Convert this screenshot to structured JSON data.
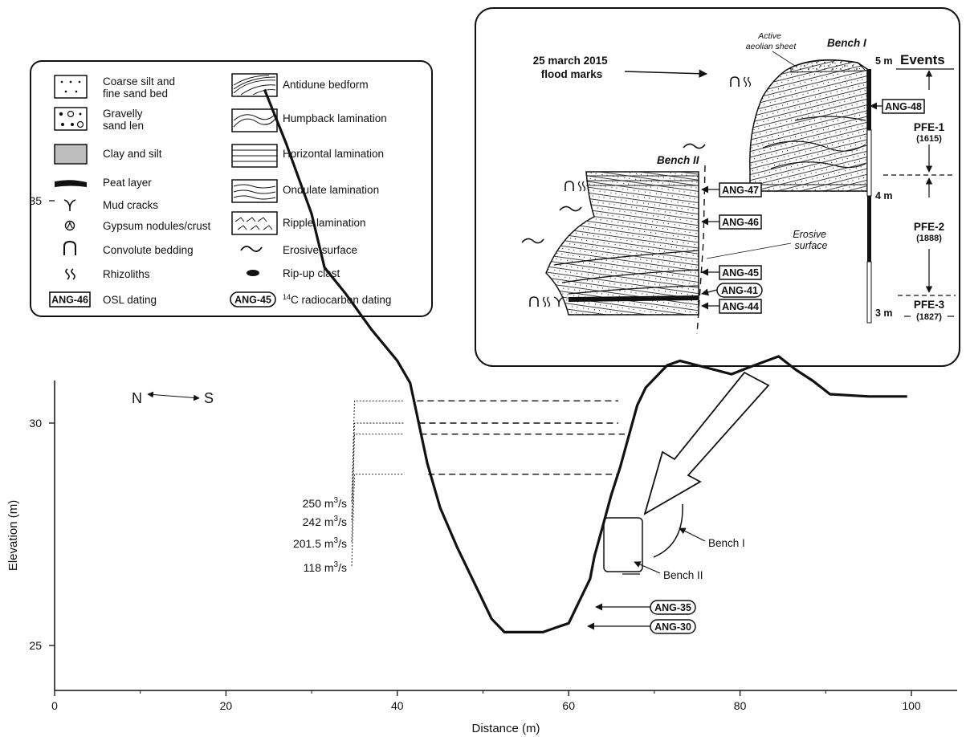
{
  "legend": {
    "left": [
      {
        "label_lines": [
          "Coarse silt and",
          "fine sand bed"
        ]
      },
      {
        "label_lines": [
          "Gravelly",
          "sand len"
        ]
      },
      {
        "label_lines": [
          "Clay and silt"
        ]
      },
      {
        "label_lines": [
          "Peat layer"
        ]
      },
      {
        "label_lines": [
          "Mud cracks"
        ]
      },
      {
        "label_lines": [
          "Gypsum nodules/crust"
        ]
      },
      {
        "label_lines": [
          "Convolute bedding"
        ]
      },
      {
        "label_lines": [
          "Rhizoliths"
        ]
      },
      {
        "label_lines": [
          "OSL dating"
        ],
        "symbol_text": "ANG-46"
      }
    ],
    "right": [
      {
        "label_lines": [
          "Antidune bedform"
        ]
      },
      {
        "label_lines": [
          "Humpback lamination"
        ]
      },
      {
        "label_lines": [
          "Horizontal lamination"
        ]
      },
      {
        "label_lines": [
          "Ondulate lamination"
        ]
      },
      {
        "label_lines": [
          "Ripple lamination"
        ]
      },
      {
        "label_lines": [
          "Erosive surface"
        ]
      },
      {
        "label_lines": [
          "Rip-up clast"
        ]
      },
      {
        "label_lines": [
          "radiocarbon dating"
        ],
        "superscript": "14",
        "prefix": "C",
        "symbol_text": "ANG-45"
      }
    ]
  },
  "inset": {
    "flood_label_lines": [
      "25 march 2015",
      "flood marks"
    ],
    "aeolian_label_lines": [
      "Active",
      "aeolian sheet"
    ],
    "bench1": "Bench I",
    "bench2": "Bench II",
    "erosive_lines": [
      "Erosive",
      "surface"
    ],
    "osl_samples": [
      "ANG-48",
      "ANG-47",
      "ANG-46",
      "ANG-45",
      "ANG-44"
    ],
    "c14_samples": [
      "ANG-41"
    ],
    "scale_labels": [
      "5 m",
      "4 m",
      "3 m"
    ],
    "events_title": "Events",
    "events": [
      {
        "name": "PFE-1",
        "year": "(1615)"
      },
      {
        "name": "PFE-2",
        "year": "(1888)"
      },
      {
        "name": "PFE-3",
        "year": "(1827)"
      }
    ]
  },
  "profile": {
    "xlabel": "Distance (m)",
    "ylabel": "Elevation (m)",
    "xticks": [
      0,
      20,
      40,
      60,
      80,
      100
    ],
    "yticks": [
      25,
      30,
      35
    ],
    "orientation": {
      "left": "N",
      "right": "S"
    },
    "discharges": [
      {
        "value": "250 m",
        "unit_sup": "3",
        "unit_tail": "/s",
        "elevation": 30.5
      },
      {
        "value": "242 m",
        "unit_sup": "3",
        "unit_tail": "/s",
        "elevation": 30.0
      },
      {
        "value": "201.5 m",
        "unit_sup": "3",
        "unit_tail": "/s",
        "elevation": 29.75
      },
      {
        "value": "118 m",
        "unit_sup": "3",
        "unit_tail": "/s",
        "elevation": 28.85
      }
    ],
    "bench_labels": [
      "Bench I",
      "Bench II"
    ],
    "c14_samples": [
      "ANG-35",
      "ANG-30"
    ],
    "terrain": [
      [
        24.5,
        37.5
      ],
      [
        27,
        36.3
      ],
      [
        30,
        34.7
      ],
      [
        31.5,
        33.5
      ],
      [
        34,
        32.9
      ],
      [
        37,
        32.1
      ],
      [
        40,
        31.4
      ],
      [
        41.5,
        30.9
      ],
      [
        42.5,
        30.0
      ],
      [
        43.5,
        29.1
      ],
      [
        45,
        28.1
      ],
      [
        47,
        27.2
      ],
      [
        49.5,
        26.2
      ],
      [
        51,
        25.6
      ],
      [
        52.5,
        25.3
      ],
      [
        57,
        25.3
      ],
      [
        58.5,
        25.4
      ],
      [
        60,
        25.5
      ],
      [
        61,
        25.9
      ],
      [
        62.5,
        26.5
      ],
      [
        63,
        27.0
      ],
      [
        64,
        27.7
      ],
      [
        65,
        28.4
      ],
      [
        66,
        29.0
      ],
      [
        67,
        29.7
      ],
      [
        68,
        30.4
      ],
      [
        69,
        30.8
      ],
      [
        71.5,
        31.3
      ],
      [
        73,
        31.4
      ],
      [
        75,
        31.3
      ],
      [
        77,
        31.2
      ],
      [
        79,
        31.1
      ],
      [
        81,
        31.25
      ],
      [
        84.5,
        31.5
      ],
      [
        86.5,
        31.2
      ],
      [
        88.5,
        30.95
      ],
      [
        90.5,
        30.65
      ],
      [
        95,
        30.6
      ],
      [
        99.5,
        30.6
      ]
    ]
  },
  "colors": {
    "clay": "#bdbdbd",
    "ink": "#111111"
  }
}
